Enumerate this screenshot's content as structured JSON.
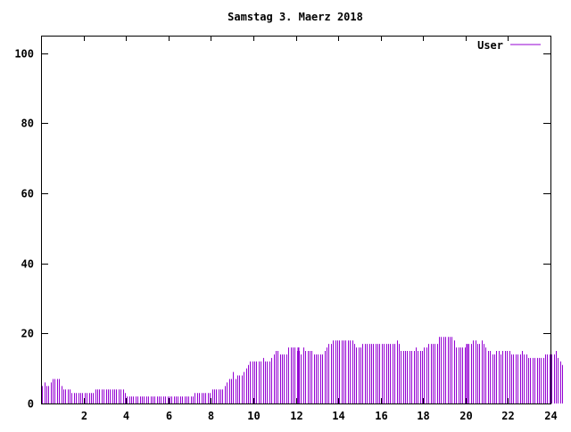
{
  "chart_data": {
    "type": "bar",
    "title": "Samstag 3. Maerz 2018",
    "xlabel": "",
    "ylabel": "",
    "xlim": [
      0,
      24
    ],
    "ylim": [
      0,
      105
    ],
    "xticks": [
      2,
      4,
      6,
      8,
      10,
      12,
      14,
      16,
      18,
      20,
      22,
      24
    ],
    "yticks": [
      0,
      20,
      40,
      60,
      80,
      100
    ],
    "grid": false,
    "legend_position": "top-right",
    "colors": {
      "bar": "#9400d3",
      "axis": "#000000",
      "background": "#ffffff"
    },
    "series": [
      {
        "name": "User",
        "bin_hours": 0.1,
        "values": [
          5,
          6,
          5,
          5,
          6,
          7,
          7,
          7,
          7,
          5,
          4,
          4,
          4,
          4,
          3,
          3,
          3,
          3,
          3,
          3,
          3,
          3,
          3,
          3,
          3,
          4,
          4,
          4,
          4,
          4,
          4,
          4,
          4,
          4,
          4,
          4,
          4,
          4,
          4,
          3,
          2,
          2,
          2,
          2,
          2,
          2,
          2,
          2,
          2,
          2,
          2,
          2,
          2,
          2,
          2,
          2,
          2,
          2,
          2,
          2,
          2,
          2,
          2,
          2,
          2,
          2,
          2,
          2,
          2,
          2,
          2,
          2,
          3,
          3,
          3,
          3,
          3,
          3,
          3,
          3,
          4,
          4,
          4,
          4,
          4,
          4,
          5,
          6,
          7,
          7,
          9,
          7,
          8,
          8,
          8,
          9,
          10,
          11,
          12,
          12,
          12,
          12,
          12,
          12,
          13,
          12,
          12,
          12,
          13,
          14,
          15,
          15,
          14,
          14,
          14,
          14,
          16,
          16,
          16,
          16,
          15,
          15,
          14,
          16,
          15,
          15,
          15,
          15,
          14,
          14,
          14,
          14,
          14,
          15,
          16,
          17,
          17,
          18,
          18,
          18,
          18,
          18,
          18,
          18,
          18,
          18,
          18,
          17,
          16,
          16,
          16,
          17,
          17,
          17,
          17,
          17,
          17,
          17,
          17,
          17,
          17,
          17,
          17,
          17,
          17,
          17,
          17,
          18,
          17,
          15,
          15,
          15,
          15,
          15,
          15,
          15,
          16,
          15,
          15,
          15,
          16,
          16,
          17,
          17,
          17,
          17,
          17,
          19,
          19,
          19,
          19,
          19,
          19,
          19,
          18,
          16,
          16,
          16,
          16,
          16,
          16,
          17,
          17,
          18,
          18,
          17,
          17,
          18,
          17,
          16,
          15,
          15,
          14,
          14,
          15,
          15,
          14,
          15,
          15,
          15,
          15,
          14,
          14,
          14,
          14,
          14,
          15,
          14,
          14,
          13,
          13,
          13,
          13,
          13,
          13,
          13,
          13,
          14,
          14,
          14,
          14,
          14,
          15,
          13,
          12,
          11
        ],
        "spikes": [
          {
            "x": 12.1,
            "value": 16
          },
          {
            "x": 20.05,
            "value": 17
          }
        ]
      }
    ]
  }
}
